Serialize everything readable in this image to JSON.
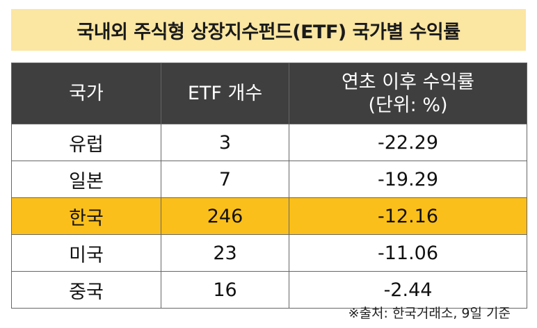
{
  "title": "국내외 주식형 상장지수펀드(ETF) 국가별 수익률",
  "table": {
    "headers": {
      "country": "국가",
      "etf_count": "ETF 개수",
      "return_line1": "연초 이후 수익률",
      "return_line2": "(단위: %)"
    },
    "rows": [
      {
        "country": "유럽",
        "etf_count": "3",
        "return": "-22.29",
        "highlight": false
      },
      {
        "country": "일본",
        "etf_count": "7",
        "return": "-19.29",
        "highlight": false
      },
      {
        "country": "한국",
        "etf_count": "246",
        "return": "-12.16",
        "highlight": true
      },
      {
        "country": "미국",
        "etf_count": "23",
        "return": "-11.06",
        "highlight": false
      },
      {
        "country": "중국",
        "etf_count": "16",
        "return": "-2.44",
        "highlight": false
      }
    ]
  },
  "source": "※출처: 한국거래소, 9일 기준",
  "colors": {
    "title_background": "#fbe6a2",
    "header_background": "#3f3f3f",
    "highlight_row": "#fbbf1b",
    "border": "#666666"
  }
}
